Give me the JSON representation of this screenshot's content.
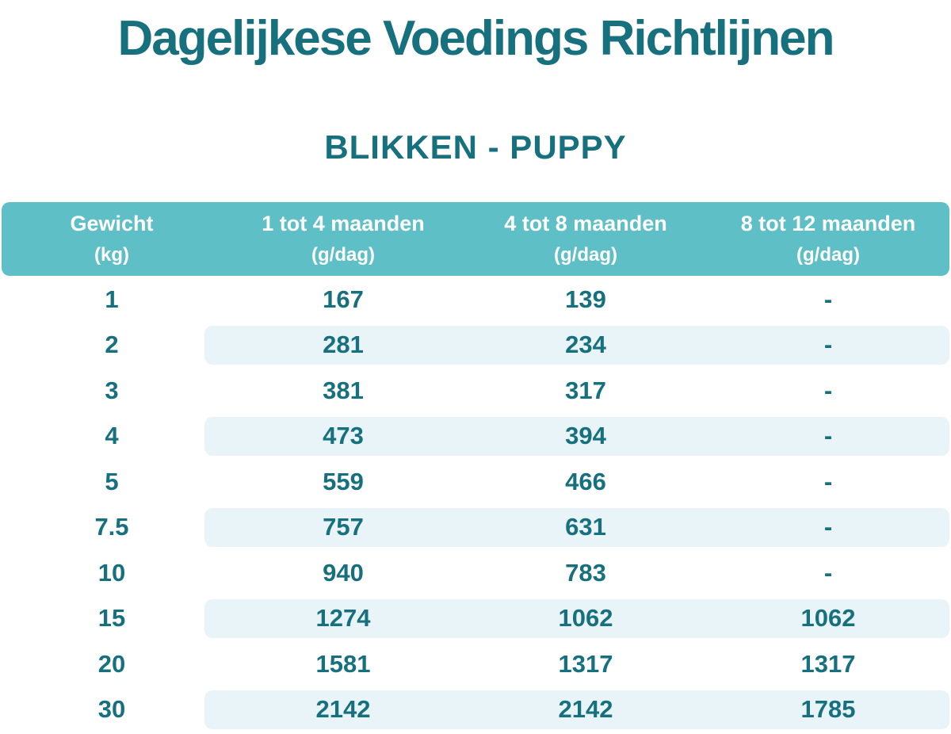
{
  "title": "Dagelijkese Voedings Richtlijnen",
  "subtitle": "BLIKKEN - PUPPY",
  "colors": {
    "header_bg": "#5ec0c6",
    "row_band_bg": "#e9f4f8",
    "text_teal": "#17707e",
    "header_text": "#ffffff"
  },
  "table": {
    "columns": [
      {
        "label": "Gewicht",
        "unit": "(kg)"
      },
      {
        "label": "1 tot 4 maanden",
        "unit": "(g/dag)"
      },
      {
        "label": "4 tot 8 maanden",
        "unit": "(g/dag)"
      },
      {
        "label": "8 tot 12 maanden",
        "unit": "(g/dag)"
      }
    ],
    "rows": [
      {
        "weight": "1",
        "values": [
          "167",
          "139",
          "-"
        ]
      },
      {
        "weight": "2",
        "values": [
          "281",
          "234",
          "-"
        ]
      },
      {
        "weight": "3",
        "values": [
          "381",
          "317",
          "-"
        ]
      },
      {
        "weight": "4",
        "values": [
          "473",
          "394",
          "-"
        ]
      },
      {
        "weight": "5",
        "values": [
          "559",
          "466",
          "-"
        ]
      },
      {
        "weight": "7.5",
        "values": [
          "757",
          "631",
          "-"
        ]
      },
      {
        "weight": "10",
        "values": [
          "940",
          "783",
          "-"
        ]
      },
      {
        "weight": "15",
        "values": [
          "1274",
          "1062",
          "1062"
        ]
      },
      {
        "weight": "20",
        "values": [
          "1581",
          "1317",
          "1317"
        ]
      },
      {
        "weight": "30",
        "values": [
          "2142",
          "2142",
          "1785"
        ]
      }
    ]
  },
  "chart_data": {
    "type": "table",
    "title": "Dagelijkese Voedings Richtlijnen",
    "subtitle": "BLIKKEN - PUPPY",
    "columns": [
      "Gewicht (kg)",
      "1 tot 4 maanden (g/dag)",
      "4 tot 8 maanden (g/dag)",
      "8 tot 12 maanden (g/dag)"
    ],
    "rows": [
      [
        "1",
        "167",
        "139",
        "-"
      ],
      [
        "2",
        "281",
        "234",
        "-"
      ],
      [
        "3",
        "381",
        "317",
        "-"
      ],
      [
        "4",
        "473",
        "394",
        "-"
      ],
      [
        "5",
        "559",
        "466",
        "-"
      ],
      [
        "7.5",
        "757",
        "631",
        "-"
      ],
      [
        "10",
        "940",
        "783",
        "-"
      ],
      [
        "15",
        "1274",
        "1062",
        "1062"
      ],
      [
        "20",
        "1581",
        "1317",
        "1317"
      ],
      [
        "30",
        "2142",
        "2142",
        "1785"
      ]
    ]
  }
}
